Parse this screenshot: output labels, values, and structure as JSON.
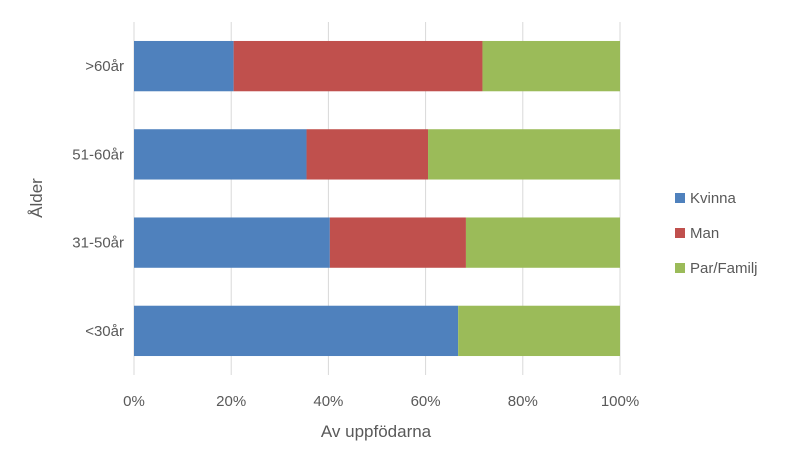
{
  "chart_data": {
    "type": "bar",
    "orientation": "horizontal",
    "stacked": true,
    "percent_stacked": true,
    "categories": [
      ">60år",
      "51-60år",
      "31-50år",
      "<30år"
    ],
    "series": [
      {
        "name": "Kvinna",
        "color": "#4f81bd",
        "values": [
          20.5,
          35.5,
          40.3,
          66.7
        ]
      },
      {
        "name": "Man",
        "color": "#c0504d",
        "values": [
          51.2,
          25.0,
          28.0,
          0
        ]
      },
      {
        "name": "Par/Familj",
        "color": "#9bbb59",
        "values": [
          28.3,
          39.5,
          31.7,
          33.3
        ]
      }
    ],
    "xlabel": "Av uppfödarna",
    "ylabel": "Ålder",
    "xlim": [
      0,
      100
    ],
    "xticks": [
      "0%",
      "20%",
      "40%",
      "60%",
      "80%",
      "100%"
    ],
    "grid": "vertical",
    "legend_position": "right"
  }
}
